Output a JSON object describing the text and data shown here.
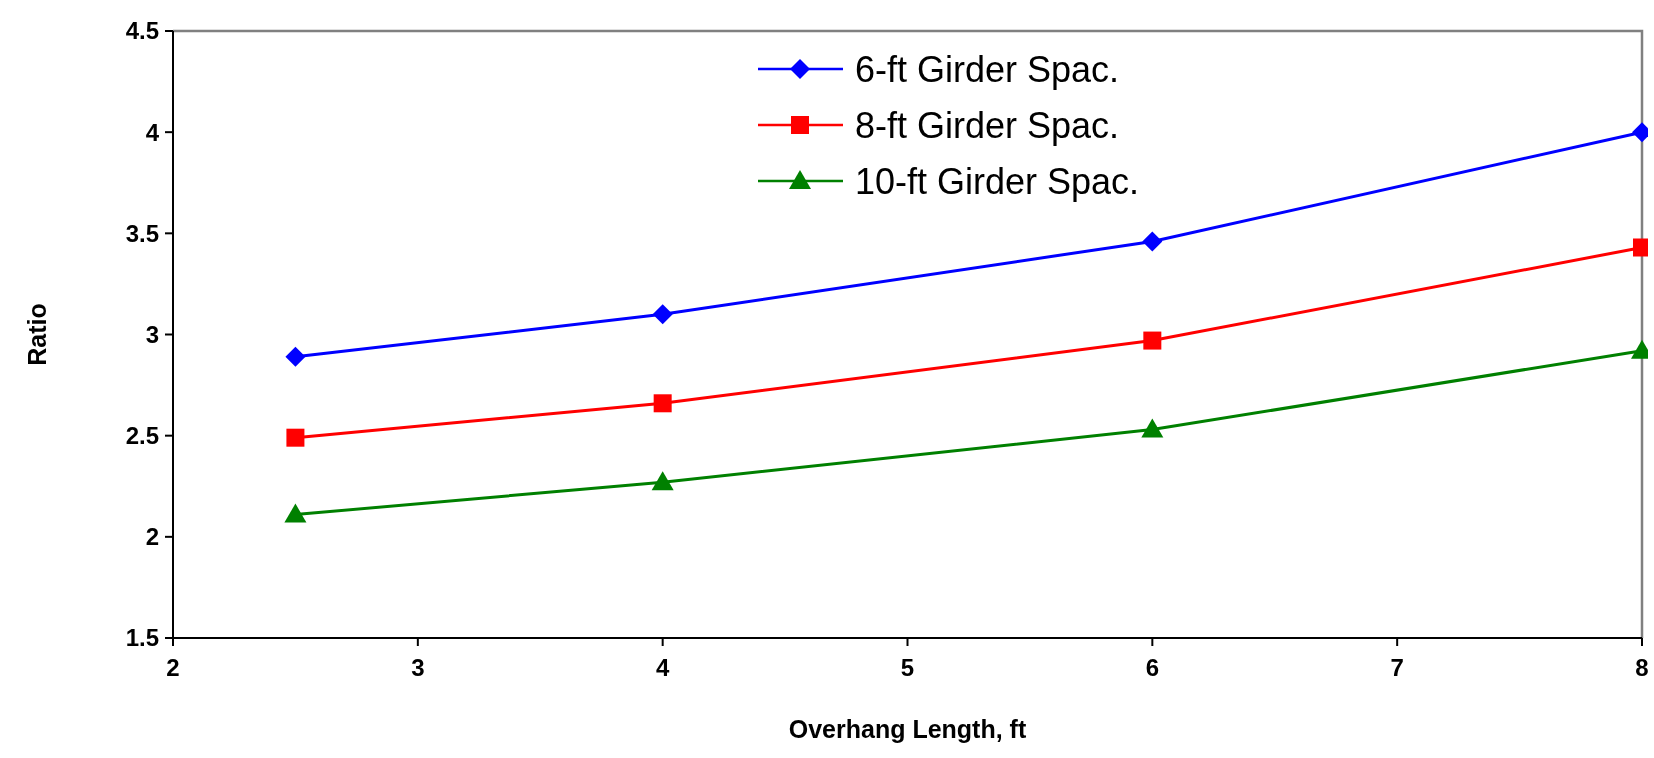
{
  "chart_data": {
    "type": "line",
    "xlabel": "Overhang Length, ft",
    "ylabel": "Ratio",
    "xlim": [
      2,
      8
    ],
    "xticks": [
      2,
      3,
      4,
      5,
      6,
      7,
      8
    ],
    "ylim": [
      1.5,
      4.5
    ],
    "yticks": [
      1.5,
      2,
      2.5,
      3,
      3.5,
      4,
      4.5
    ],
    "grid": false,
    "legend": "top right",
    "series": [
      {
        "name": "6-ft Girder Spac.",
        "color": "#0000ff",
        "marker": "diamond",
        "x": [
          2.5,
          4,
          6,
          8
        ],
        "values": [
          2.89,
          3.1,
          3.46,
          4.0
        ]
      },
      {
        "name": "8-ft Girder Spac.",
        "color": "#ff0000",
        "marker": "square",
        "x": [
          2.5,
          4,
          6,
          8
        ],
        "values": [
          2.49,
          2.66,
          2.97,
          3.43
        ]
      },
      {
        "name": "10-ft Girder Spac.",
        "color": "#008000",
        "marker": "triangle",
        "x": [
          2.5,
          4,
          6,
          8
        ],
        "values": [
          2.11,
          2.27,
          2.53,
          2.92
        ]
      }
    ]
  }
}
